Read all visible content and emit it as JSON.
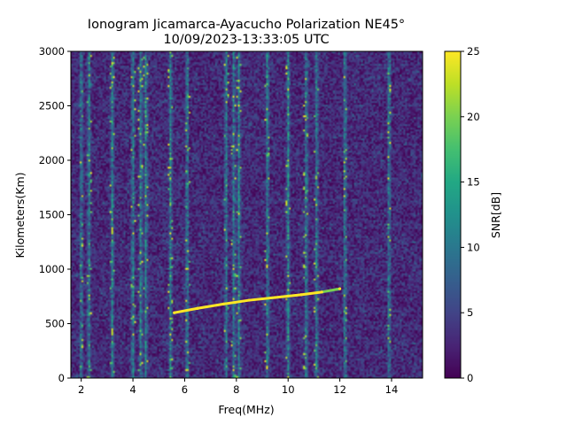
{
  "chart_data": {
    "type": "heatmap",
    "title_line1": "Ionogram Jicamarca-Ayacucho Polarization NE45°",
    "title_line2": "10/09/2023-13:33:05 UTC",
    "xlabel": "Freq(MHz)",
    "ylabel": "Kilometers(Km)",
    "xlim": [
      1.6,
      15.2
    ],
    "ylim": [
      0,
      3000
    ],
    "x_ticks": [
      2,
      4,
      6,
      8,
      10,
      12,
      14
    ],
    "y_ticks": [
      0,
      500,
      1000,
      1500,
      2000,
      2500,
      3000
    ],
    "colorbar": {
      "label": "SNR[dB]",
      "min": 0,
      "max": 25,
      "ticks": [
        0,
        5,
        10,
        15,
        20,
        25
      ],
      "colormap": "viridis"
    },
    "grid": false,
    "vertical_interference_bands_mhz": [
      2.0,
      2.3,
      3.2,
      4.0,
      4.3,
      4.5,
      5.45,
      6.1,
      7.6,
      7.9,
      8.1,
      9.2,
      10.0,
      10.7,
      11.1,
      12.2,
      13.9
    ],
    "echo_trace": [
      {
        "freq": 5.6,
        "km": 600
      },
      {
        "freq": 6.5,
        "km": 640
      },
      {
        "freq": 7.5,
        "km": 680
      },
      {
        "freq": 8.5,
        "km": 715
      },
      {
        "freq": 9.5,
        "km": 740
      },
      {
        "freq": 10.5,
        "km": 765
      },
      {
        "freq": 11.3,
        "km": 790
      },
      {
        "freq": 12.0,
        "km": 820
      }
    ]
  }
}
